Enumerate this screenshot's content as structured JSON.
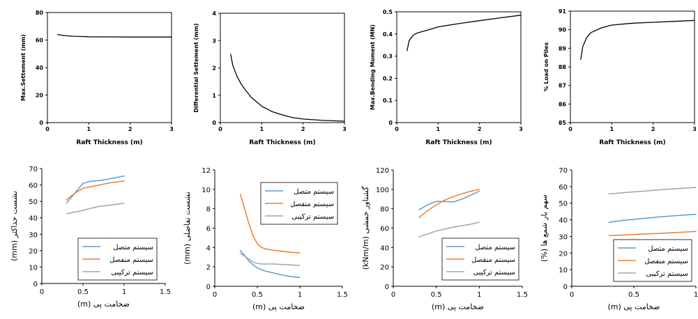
{
  "chart_data": [
    {
      "type": "line",
      "xlabel": "Raft Thickness (m)",
      "ylabel": "Max.Settement (mm)",
      "xlim": [
        0,
        3
      ],
      "ylim": [
        0,
        80
      ],
      "xticks": [
        "0",
        "1",
        "2",
        "3"
      ],
      "yticks": [
        "0",
        "20",
        "40",
        "60",
        "80"
      ],
      "series": [
        {
          "color": "#000000",
          "x": [
            0.25,
            0.4,
            0.6,
            0.8,
            1.0,
            1.5,
            2.0,
            2.5,
            3.0
          ],
          "y": [
            64,
            63.3,
            62.8,
            62.6,
            62.4,
            62.3,
            62.2,
            62.2,
            62.2
          ]
        }
      ]
    },
    {
      "type": "line",
      "xlabel": "Raft Thickness (m)",
      "ylabel": "Differential Settement (mm)",
      "xlim": [
        0,
        3
      ],
      "ylim": [
        0,
        4
      ],
      "xticks": [
        "0",
        "1",
        "2",
        "3"
      ],
      "yticks": [
        "0",
        "1",
        "2",
        "3",
        "4"
      ],
      "series": [
        {
          "color": "#000000",
          "x": [
            0.25,
            0.3,
            0.4,
            0.5,
            0.6,
            0.75,
            1.0,
            1.25,
            1.5,
            1.75,
            2.0,
            2.5,
            3.0
          ],
          "y": [
            2.5,
            2.1,
            1.7,
            1.42,
            1.2,
            0.92,
            0.6,
            0.4,
            0.28,
            0.18,
            0.13,
            0.08,
            0.05
          ]
        }
      ]
    },
    {
      "type": "line",
      "xlabel": "Raft Thickness (m)",
      "ylabel": "Max.Bending Moment (MN)",
      "xlim": [
        0,
        3
      ],
      "ylim": [
        0,
        0.5
      ],
      "xticks": [
        "0",
        "1",
        "2",
        "3"
      ],
      "yticks": [
        "0",
        "0.1",
        "0.2",
        "0.3",
        "0.4",
        "0.5"
      ],
      "series": [
        {
          "color": "#000000",
          "x": [
            0.25,
            0.3,
            0.4,
            0.5,
            0.75,
            1.0,
            1.5,
            2.0,
            2.5,
            3.0
          ],
          "y": [
            0.325,
            0.37,
            0.395,
            0.405,
            0.418,
            0.432,
            0.447,
            0.46,
            0.473,
            0.485
          ]
        }
      ]
    },
    {
      "type": "line",
      "xlabel": "Raft Thickness (m)",
      "ylabel": "% Load on Piles",
      "xlim": [
        0,
        3
      ],
      "ylim": [
        85,
        91
      ],
      "xticks": [
        "0",
        "1",
        "2",
        "3"
      ],
      "yticks": [
        "85",
        "86",
        "87",
        "88",
        "89",
        "90",
        "91"
      ],
      "series": [
        {
          "color": "#000000",
          "x": [
            0.25,
            0.3,
            0.4,
            0.5,
            0.75,
            1.0,
            1.5,
            2.0,
            2.5,
            3.0
          ],
          "y": [
            88.4,
            89.1,
            89.6,
            89.85,
            90.1,
            90.25,
            90.35,
            90.4,
            90.45,
            90.5
          ]
        }
      ]
    },
    {
      "type": "line",
      "xlabel": "ضخامت پی (m)",
      "ylabel": "نشست حداکثر (mm)",
      "xlim": [
        0,
        1.5
      ],
      "ylim": [
        0,
        70
      ],
      "xticks": [
        "0",
        "0.5",
        "1",
        "1.5"
      ],
      "yticks": [
        "0",
        "10",
        "20",
        "30",
        "40",
        "50",
        "60",
        "70"
      ],
      "legend_position": "bottom-right",
      "series": [
        {
          "name": "سیستم متصل",
          "color": "#5b9bd5",
          "x": [
            0.3,
            0.4,
            0.5,
            0.6,
            0.7,
            0.8,
            0.9,
            1.0
          ],
          "y": [
            49,
            55,
            61,
            62.3,
            62.7,
            63.5,
            64.5,
            65.5
          ]
        },
        {
          "name": "سیستم منفصل",
          "color": "#ed7d31",
          "x": [
            0.3,
            0.4,
            0.5,
            0.6,
            0.7,
            0.8,
            0.9,
            1.0
          ],
          "y": [
            51,
            55,
            58,
            59,
            60,
            61,
            61.8,
            62.5
          ]
        },
        {
          "name": "سیستم ترکیبی",
          "color": "#a5a5a5",
          "x": [
            0.3,
            0.4,
            0.5,
            0.6,
            0.7,
            0.8,
            0.9,
            1.0
          ],
          "y": [
            42.5,
            43.5,
            44.5,
            45.8,
            47,
            47.5,
            48.2,
            48.8
          ]
        }
      ]
    },
    {
      "type": "line",
      "xlabel": "ضخامت پی (m)",
      "ylabel": "نشست تفاضلی (mm)",
      "xlim": [
        0,
        1.5
      ],
      "ylim": [
        0,
        12
      ],
      "xticks": [
        "0",
        "0.5",
        "1",
        "1.5"
      ],
      "yticks": [
        "0",
        "2",
        "4",
        "6",
        "8",
        "10",
        "12"
      ],
      "legend_position": "top-right",
      "series": [
        {
          "name": "سیستم متصل",
          "color": "#5b9bd5",
          "x": [
            0.3,
            0.35,
            0.4,
            0.45,
            0.5,
            0.55,
            0.6,
            0.7,
            0.8,
            0.9,
            1.0
          ],
          "y": [
            3.7,
            3.2,
            2.6,
            2.2,
            1.9,
            1.7,
            1.55,
            1.35,
            1.15,
            1.0,
            0.9
          ]
        },
        {
          "name": "سیستم منفصل",
          "color": "#ed7d31",
          "x": [
            0.3,
            0.35,
            0.4,
            0.45,
            0.5,
            0.55,
            0.6,
            0.7,
            0.8,
            0.9,
            1.0
          ],
          "y": [
            9.5,
            8.0,
            6.5,
            5.2,
            4.4,
            4.0,
            3.85,
            3.7,
            3.6,
            3.5,
            3.45
          ]
        },
        {
          "name": "سیستم ترکیبی",
          "color": "#a5a5a5",
          "x": [
            0.3,
            0.35,
            0.4,
            0.45,
            0.5,
            0.55,
            0.6,
            0.7,
            0.8,
            0.9,
            1.0
          ],
          "y": [
            3.4,
            3.1,
            2.8,
            2.5,
            2.35,
            2.3,
            2.3,
            2.3,
            2.25,
            2.2,
            2.15
          ]
        }
      ]
    },
    {
      "type": "line",
      "xlabel": "ضخامت پی (m)",
      "ylabel": "گشتاور خمشی (kNm/m)",
      "xlim": [
        0,
        1.5
      ],
      "ylim": [
        0,
        120
      ],
      "xticks": [
        "0",
        "0.5",
        "1",
        "1.5"
      ],
      "yticks": [
        "0",
        "20",
        "40",
        "60",
        "80",
        "100",
        "120"
      ],
      "legend_position": "bottom-right",
      "series": [
        {
          "name": "سیستم متصل",
          "color": "#5b9bd5",
          "x": [
            0.3,
            0.4,
            0.5,
            0.6,
            0.7,
            0.8,
            0.9,
            1.0
          ],
          "y": [
            79,
            84,
            87.5,
            87.5,
            87,
            90,
            94,
            98
          ]
        },
        {
          "name": "سیستم منفصل",
          "color": "#ed7d31",
          "x": [
            0.3,
            0.4,
            0.5,
            0.6,
            0.7,
            0.8,
            0.9,
            1.0
          ],
          "y": [
            71,
            78,
            84,
            89,
            92.5,
            95.5,
            98,
            100
          ]
        },
        {
          "name": "سیستم ترکیبی",
          "color": "#a5a5a5",
          "x": [
            0.3,
            0.4,
            0.5,
            0.6,
            0.7,
            0.8,
            0.9,
            1.0
          ],
          "y": [
            51,
            54,
            57,
            59,
            61,
            62.5,
            64,
            66
          ]
        }
      ]
    },
    {
      "type": "line",
      "xlabel": "ضخامت پی (m)",
      "ylabel": "سهم بار شمع ها (%)",
      "xlim": [
        0,
        1
      ],
      "ylim": [
        0,
        70
      ],
      "xticks": [
        "0",
        "0.5",
        "1"
      ],
      "yticks": [
        "0",
        "10",
        "20",
        "30",
        "40",
        "50",
        "60",
        "70"
      ],
      "legend_position": "bottom-right",
      "series": [
        {
          "name": "سیستم متصل",
          "color": "#5b9bd5",
          "x": [
            0.3,
            0.4,
            0.5,
            0.6,
            0.7,
            0.8,
            0.9,
            1.0
          ],
          "y": [
            38.5,
            39.5,
            40.3,
            41,
            41.7,
            42.3,
            42.8,
            43.3
          ]
        },
        {
          "name": "سیستم منفصل",
          "color": "#ed7d31",
          "x": [
            0.3,
            0.4,
            0.5,
            0.6,
            0.7,
            0.8,
            0.9,
            1.0
          ],
          "y": [
            30.5,
            30.8,
            31.2,
            31.5,
            31.8,
            32.2,
            32.6,
            33
          ]
        },
        {
          "name": "سیستم ترکیبی",
          "color": "#a5a5a5",
          "x": [
            0.3,
            0.4,
            0.5,
            0.6,
            0.7,
            0.8,
            0.9,
            1.0
          ],
          "y": [
            55.5,
            56.2,
            56.8,
            57.4,
            58,
            58.5,
            59,
            59.5
          ]
        }
      ]
    }
  ]
}
